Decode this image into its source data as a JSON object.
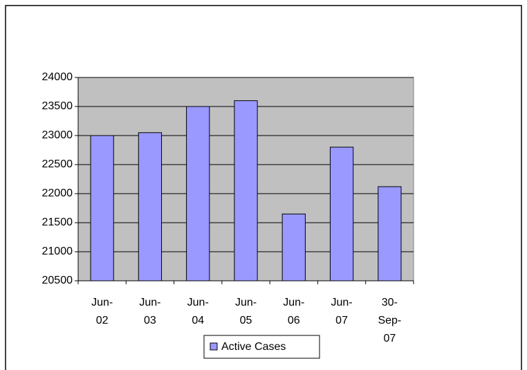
{
  "chart_data": {
    "type": "bar",
    "categories": [
      "Jun-02",
      "Jun-03",
      "Jun-04",
      "Jun-05",
      "Jun-06",
      "Jun-07",
      "30-Sep-07"
    ],
    "series": [
      {
        "name": "Active Cases",
        "color": "#9999ff",
        "values": [
          23000,
          23050,
          23500,
          23600,
          21650,
          22800,
          22120
        ]
      }
    ],
    "ylim": [
      20500,
      24000
    ],
    "yticks": [
      20500,
      21000,
      21500,
      22000,
      22500,
      23000,
      23500,
      24000
    ],
    "grid": true,
    "legend": "bottom"
  }
}
